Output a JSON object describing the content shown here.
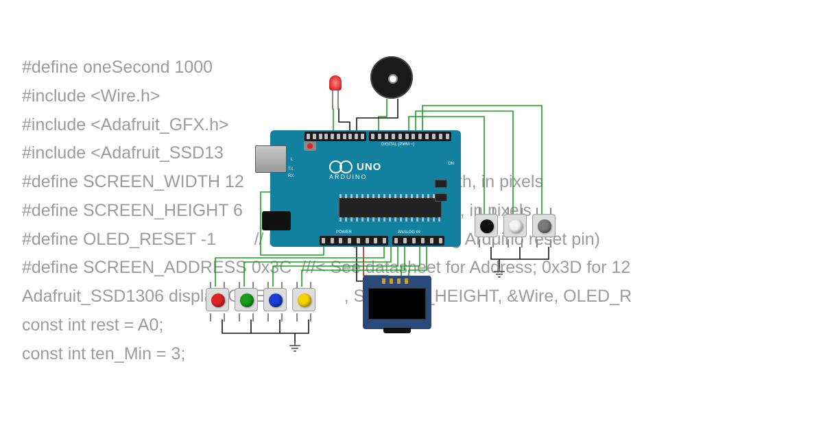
{
  "code_lines": [
    "#define oneSecond 1000",
    "#include <Wire.h>",
    "#include <Adafruit_GFX.h>",
    "#include <Adafruit_SSD13",
    "#define SCREEN_WIDTH 12                              splay width, in pixels",
    "#define SCREEN_HEIGHT 6                               pla     i   t, in pixels",
    "#define OLED_RESET -1        // Reset  in   (or  1 i   haring Arduino reset pin)",
    "#define SCREEN_ADDRESS 0x3C  ///< See datasheet for Address; 0x3D for 12",
    "Adafruit_SSD1306 displa   C   E       W      , SCREEN_HEIGHT, &Wire, OLED_R",
    "",
    "const int rest = A0;",
    "const int ten_Min = 3;"
  ],
  "arduino": {
    "brand": "UNO",
    "sub": "ARDUINO",
    "digital_label": "DIGITAL (PWM ~)",
    "power_label": "POWER",
    "analog_label": "ANALOG IN",
    "tx": "TX",
    "rx": "RX",
    "l": "L",
    "on": "ON",
    "board_color": "#12819f"
  },
  "components": {
    "led": {
      "color": "#cc0000"
    },
    "buzzer": {
      "color": "#1a1a1a"
    },
    "oled": {
      "pcb_color": "#2b4a7a"
    },
    "button_rows": {
      "left": [
        {
          "color": "#e02424"
        },
        {
          "color": "#18a018"
        },
        {
          "color": "#1a3fd6"
        },
        {
          "color": "#f5d400"
        }
      ],
      "right": [
        {
          "color": "#111111"
        },
        {
          "color": "#f4f4f4"
        },
        {
          "color": "#7a7a7a"
        }
      ]
    }
  },
  "wire_colors": {
    "signal": "#16a018",
    "ground": "#111111",
    "power": "#d81414"
  }
}
